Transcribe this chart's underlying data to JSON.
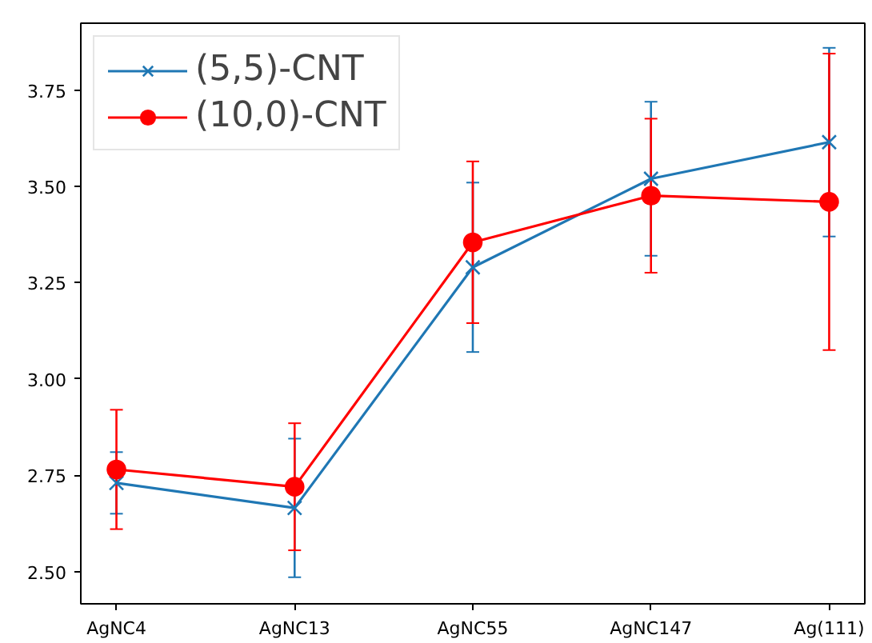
{
  "chart_data": {
    "type": "line",
    "categories": [
      "AgNC4",
      "AgNC13",
      "AgNC55",
      "AgNC147",
      "Ag(111)"
    ],
    "series": [
      {
        "name": "(5,5)-CNT",
        "color": "#1f77b4",
        "marker": "cross",
        "values": [
          2.73,
          2.665,
          3.29,
          3.52,
          3.615
        ],
        "errors": [
          0.08,
          0.18,
          0.22,
          0.2,
          0.245
        ]
      },
      {
        "name": "(10,0)-CNT",
        "color": "#ff0000",
        "marker": "circle",
        "values": [
          2.765,
          2.72,
          3.355,
          3.476,
          3.46
        ],
        "errors": [
          0.155,
          0.165,
          0.21,
          0.2,
          0.385
        ]
      }
    ],
    "ylim": [
      2.416,
      3.924
    ],
    "yticks": [
      {
        "value": 2.5,
        "label": "2.50"
      },
      {
        "value": 2.75,
        "label": "2.75"
      },
      {
        "value": 3.0,
        "label": "3.00"
      },
      {
        "value": 3.25,
        "label": "3.25"
      },
      {
        "value": 3.5,
        "label": "3.50"
      },
      {
        "value": 3.75,
        "label": "3.75"
      }
    ],
    "grid": false,
    "legend": "top left",
    "line_style": "solid"
  }
}
